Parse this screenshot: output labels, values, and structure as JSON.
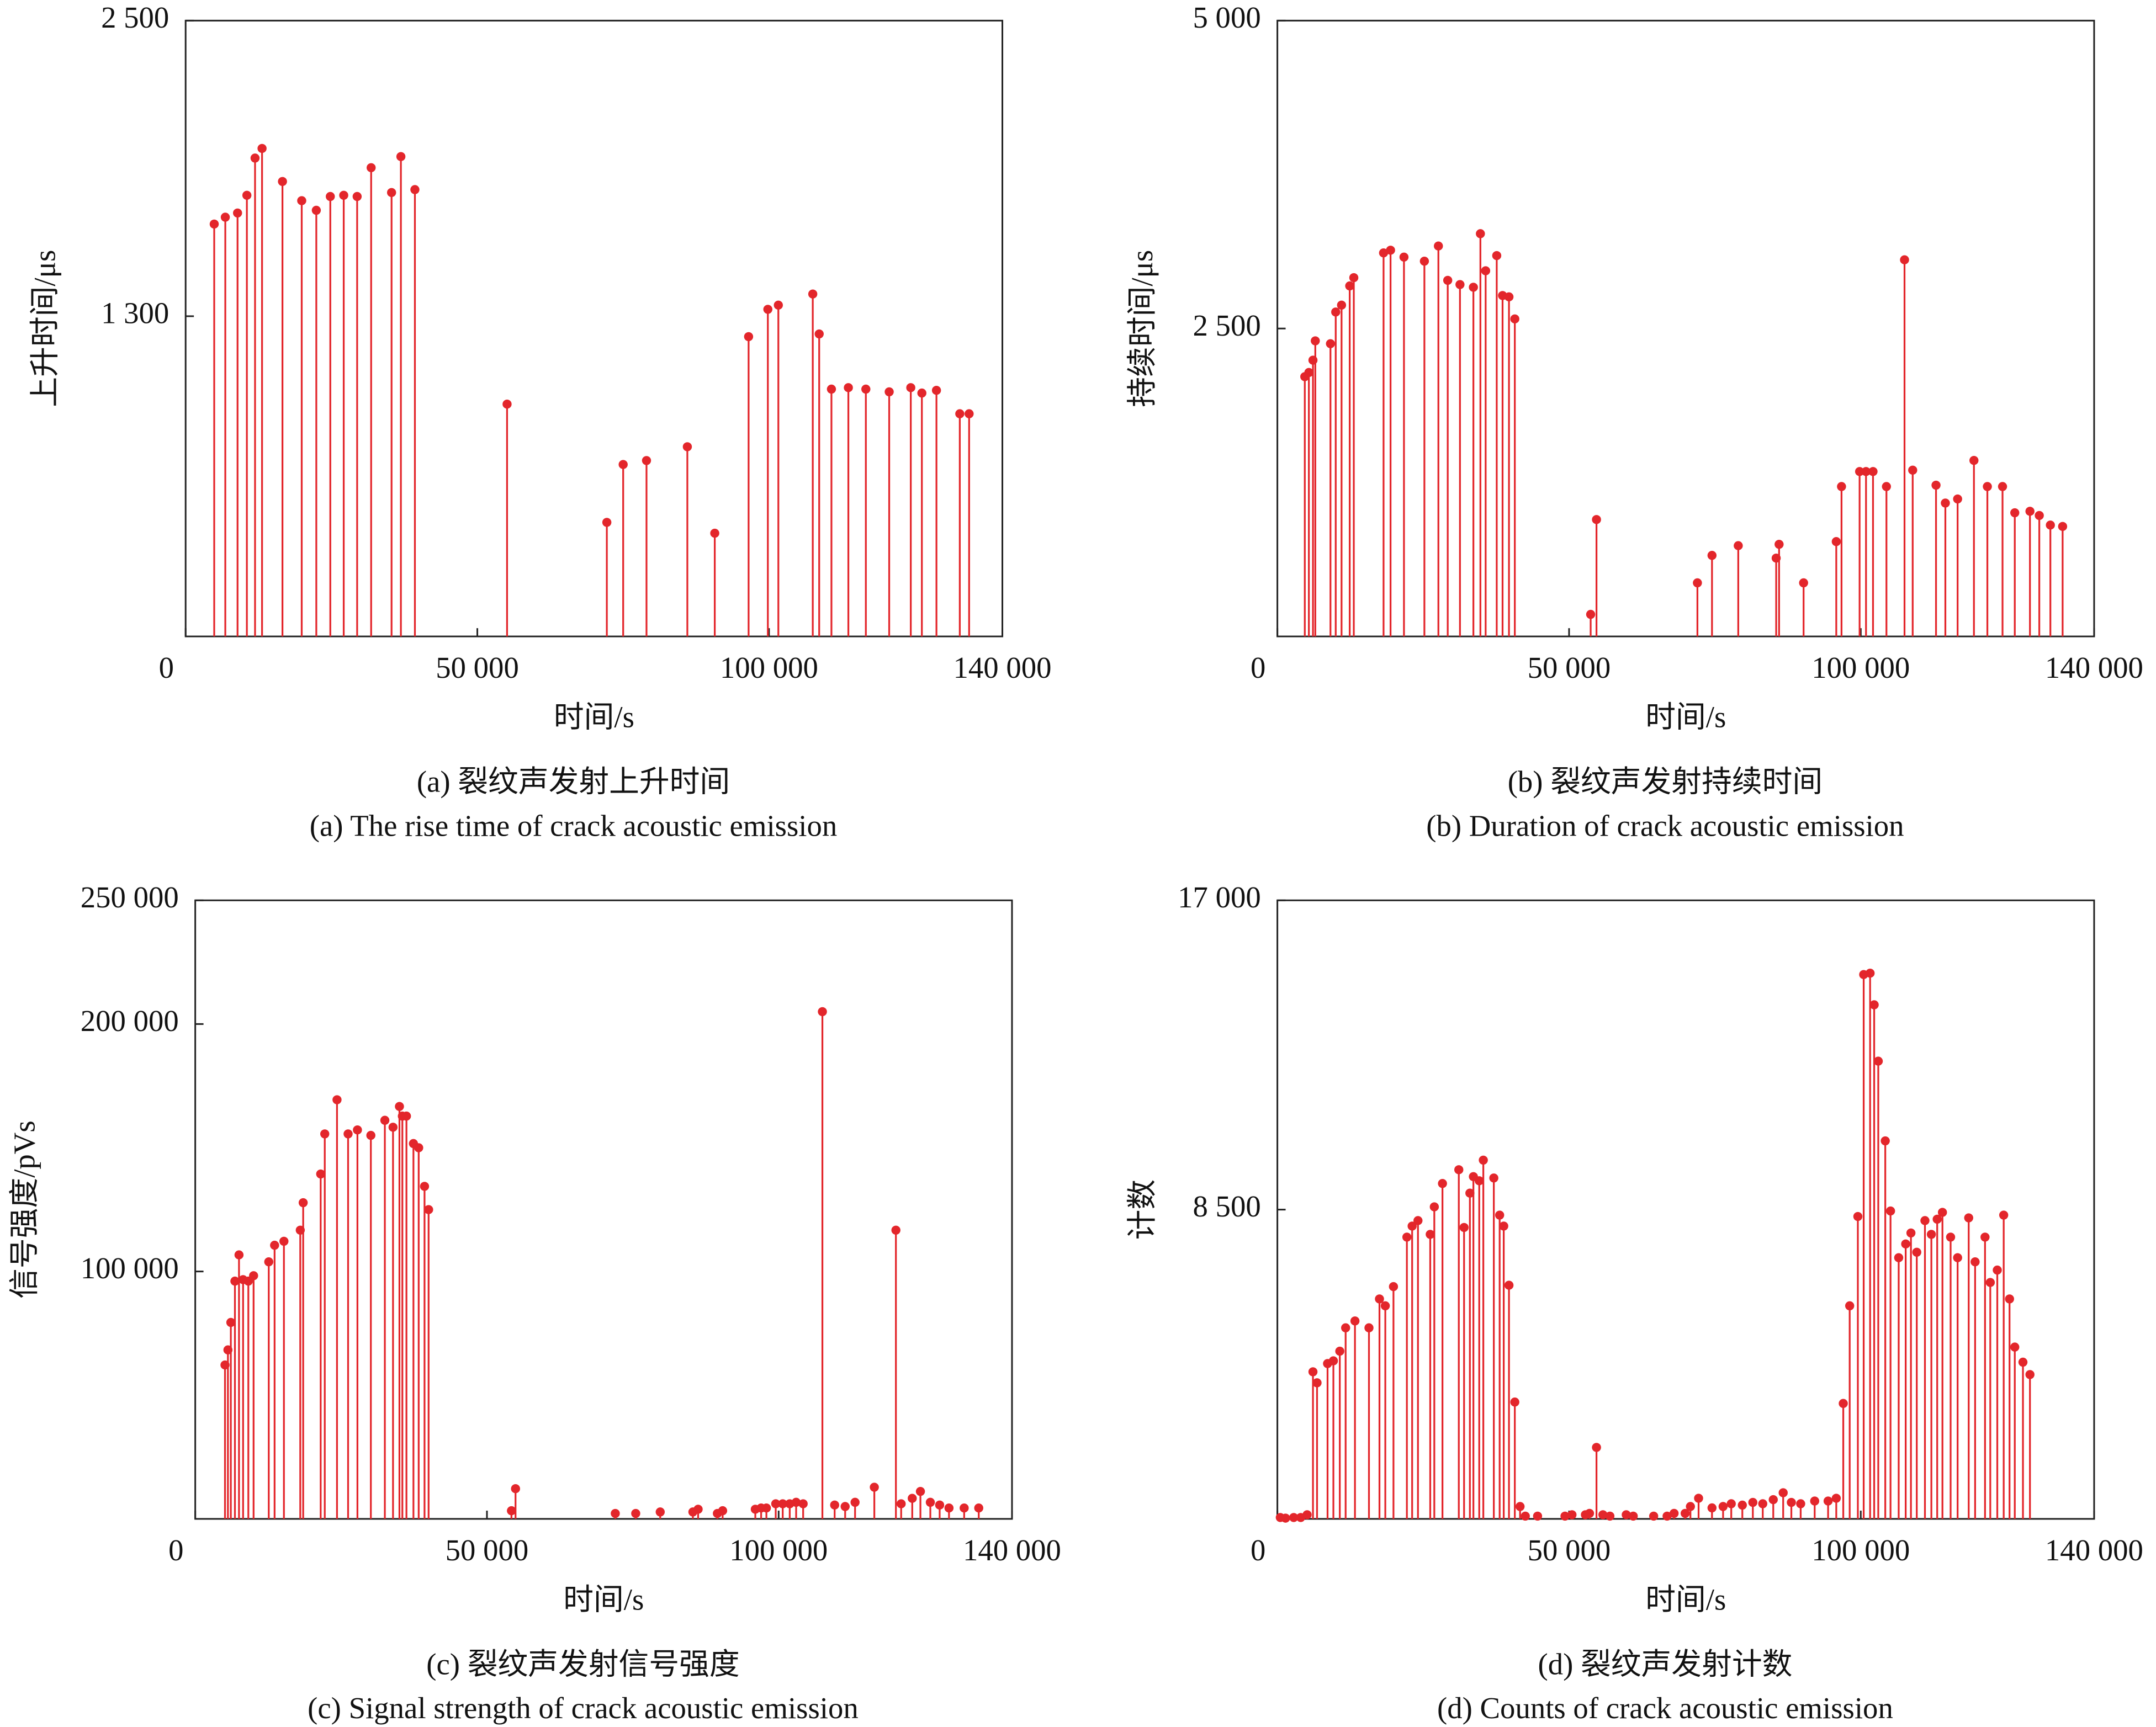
{
  "chart_data": [
    {
      "type": "stem",
      "title": "(a) 裂纹声发射上升时间",
      "subtitle": "(a) The rise time of crack acoustic emission",
      "x_label": "时间/s",
      "y_label": "上升时间/μs",
      "color": "#e3262b",
      "xlim": [
        0,
        140000
      ],
      "ylim": [
        0,
        2500
      ],
      "xticks": [
        0,
        {
          "value": 50000,
          "label": "50 000"
        },
        {
          "value": 100000,
          "label": "100 000"
        },
        {
          "value": 140000,
          "label": "140 000"
        }
      ],
      "yticks": [
        {
          "value": 1300,
          "label": "1 300"
        },
        {
          "value": 2500,
          "label": "2 500"
        }
      ],
      "x": [
        4900,
        6800,
        8900,
        10500,
        11900,
        13100,
        16600,
        19900,
        22400,
        24800,
        27100,
        29400,
        31800,
        35300,
        36900,
        39300,
        55100,
        72200,
        75000,
        79000,
        86000,
        90700,
        96500,
        99800,
        101600,
        107500,
        108600,
        110700,
        113600,
        116600,
        120600,
        124300,
        126200,
        128700,
        132700,
        134300
      ],
      "values": [
        1674,
        1702,
        1719,
        1791,
        1942,
        1981,
        1847,
        1769,
        1730,
        1786,
        1791,
        1786,
        1903,
        1802,
        1948,
        1814,
        943,
        463,
        698,
        714,
        770,
        419,
        1217,
        1328,
        1345,
        1390,
        1228,
        1004,
        1010,
        1004,
        993,
        1010,
        988,
        999,
        904,
        904
      ]
    },
    {
      "type": "stem",
      "title": "(b) 裂纹声发射持续时间",
      "subtitle": "(b) Duration of crack acoustic emission",
      "x_label": "时间/s",
      "y_label": "持续时间/μs",
      "color": "#e3262b",
      "xlim": [
        0,
        140000
      ],
      "ylim": [
        0,
        5000
      ],
      "xticks": [
        0,
        {
          "value": 50000,
          "label": "50 000"
        },
        {
          "value": 100000,
          "label": "100 000"
        },
        {
          "value": 140000,
          "label": "140 000"
        }
      ],
      "yticks": [
        {
          "value": 2500,
          "label": "2 500"
        },
        {
          "value": 5000,
          "label": "5 000"
        }
      ],
      "x": [
        4700,
        5400,
        6100,
        6500,
        9100,
        10000,
        11000,
        12400,
        13100,
        18200,
        19400,
        21700,
        25200,
        27600,
        29200,
        31300,
        33600,
        34800,
        35700,
        37600,
        38600,
        39700,
        40700,
        53700,
        54700,
        72000,
        74500,
        79000,
        85500,
        86000,
        90200,
        95800,
        96700,
        99800,
        100900,
        102100,
        104400,
        107500,
        108900,
        112900,
        114500,
        116600,
        119400,
        121700,
        124300,
        126400,
        129000,
        130600,
        132500,
        134600
      ],
      "values": [
        2109,
        2143,
        2243,
        2400,
        2377,
        2634,
        2690,
        2846,
        2913,
        3114,
        3136,
        3080,
        3047,
        3170,
        2891,
        2857,
        2835,
        3270,
        2969,
        3092,
        2768,
        2757,
        2578,
        179,
        949,
        435,
        658,
        737,
        636,
        748,
        435,
        770,
        1217,
        1339,
        1339,
        1339,
        1217,
        3058,
        1350,
        1228,
        1083,
        1116,
        1429,
        1217,
        1217,
        1004,
        1016,
        982,
        904,
        893
      ]
    },
    {
      "type": "stem",
      "title": "(c) 裂纹声发射信号强度",
      "subtitle": "(c) Signal strength of crack acoustic emission",
      "x_label": "时间/s",
      "y_label": "信号强度/pVs",
      "color": "#e3262b",
      "xlim": [
        0,
        140000
      ],
      "ylim": [
        0,
        250000
      ],
      "xticks": [
        0,
        {
          "value": 50000,
          "label": "50 000"
        },
        {
          "value": 100000,
          "label": "100 000"
        },
        {
          "value": 140000,
          "label": "140 000"
        }
      ],
      "yticks": [
        {
          "value": 100000,
          "label": "100 000"
        },
        {
          "value": 200000,
          "label": "200 000"
        },
        {
          "value": 250000,
          "label": "250 000"
        }
      ],
      "x": [
        5100,
        5600,
        6100,
        6800,
        7500,
        8200,
        9100,
        10000,
        12600,
        13600,
        15200,
        18000,
        18500,
        21500,
        22200,
        24300,
        26200,
        27800,
        30100,
        32500,
        33900,
        35000,
        35500,
        36200,
        37400,
        38300,
        39300,
        40000,
        54200,
        54900,
        72000,
        75500,
        79700,
        85300,
        86200,
        89500,
        90400,
        96000,
        97000,
        97900,
        99500,
        100700,
        101900,
        103000,
        104200,
        107500,
        109600,
        111400,
        113100,
        116400,
        120100,
        121000,
        122900,
        124300,
        126000,
        127600,
        129200,
        131800,
        134300
      ],
      "values": [
        62200,
        68300,
        79400,
        96100,
        106700,
        96700,
        96100,
        98300,
        103900,
        110600,
        112200,
        116700,
        127800,
        139400,
        155600,
        169400,
        155600,
        157200,
        155000,
        161100,
        158300,
        166700,
        162800,
        162800,
        151700,
        150000,
        134400,
        125000,
        3300,
        12200,
        2200,
        2200,
        2800,
        2800,
        3900,
        2200,
        3300,
        3900,
        4400,
        4400,
        6100,
        6100,
        6100,
        6700,
        6100,
        205000,
        5600,
        5000,
        6700,
        12800,
        116700,
        6100,
        8300,
        11100,
        6700,
        5600,
        4400,
        4400,
        4400
      ]
    },
    {
      "type": "stem",
      "title": "(d) 裂纹声发射计数",
      "subtitle": "(d) Counts of crack acoustic emission",
      "x_label": "时间/s",
      "y_label": "计数",
      "color": "#e3262b",
      "xlim": [
        0,
        140000
      ],
      "ylim": [
        0,
        17000
      ],
      "xticks": [
        0,
        {
          "value": 50000,
          "label": "50 000"
        },
        {
          "value": 100000,
          "label": "100 000"
        },
        {
          "value": 140000,
          "label": "140 000"
        }
      ],
      "yticks": [
        {
          "value": 8500,
          "label": "8 500"
        },
        {
          "value": 17000,
          "label": "17 000"
        }
      ],
      "x": [
        500,
        1400,
        2800,
        4000,
        5100,
        6100,
        6800,
        8600,
        9600,
        10700,
        11700,
        13300,
        15700,
        17500,
        18500,
        19900,
        22200,
        23100,
        24100,
        26200,
        26900,
        28300,
        31100,
        32000,
        33000,
        33600,
        34600,
        35300,
        37100,
        38100,
        38800,
        39700,
        40700,
        41600,
        42500,
        44600,
        49300,
        50500,
        52800,
        53500,
        54700,
        55800,
        57000,
        59800,
        61000,
        64500,
        66800,
        68000,
        69900,
        70800,
        72200,
        74500,
        76400,
        77800,
        79700,
        81500,
        83200,
        85000,
        86700,
        88100,
        89700,
        92100,
        94400,
        95800,
        97000,
        98100,
        99500,
        100500,
        101600,
        102300,
        103000,
        104200,
        105100,
        106500,
        107700,
        108600,
        109600,
        111000,
        112100,
        113100,
        114000,
        115400,
        116600,
        118500,
        119600,
        121300,
        122200,
        123400,
        124500,
        125500,
        126400,
        127800,
        129000
      ],
      "values": [
        38,
        20,
        38,
        38,
        113,
        4042,
        3740,
        4269,
        4344,
        4609,
        5251,
        5440,
        5251,
        6044,
        5856,
        6384,
        7744,
        8047,
        8198,
        7820,
        8576,
        9218,
        9596,
        8009,
        8953,
        9407,
        9293,
        9860,
        9369,
        8349,
        8047,
        6422,
        3211,
        340,
        76,
        76,
        76,
        113,
        113,
        151,
        1964,
        113,
        76,
        113,
        76,
        76,
        76,
        151,
        151,
        340,
        567,
        302,
        340,
        416,
        378,
        453,
        416,
        529,
        718,
        453,
        416,
        491,
        491,
        567,
        3173,
        5856,
        8311,
        14960,
        14998,
        14129,
        12580,
        10389,
        8462,
        7178,
        7556,
        7858,
        7329,
        8198,
        7820,
        8236,
        8424,
        7744,
        7178,
        8273,
        7065,
        7744,
        6498,
        6838,
        8349,
        6044,
        4722,
        4307,
        3967
      ]
    }
  ]
}
